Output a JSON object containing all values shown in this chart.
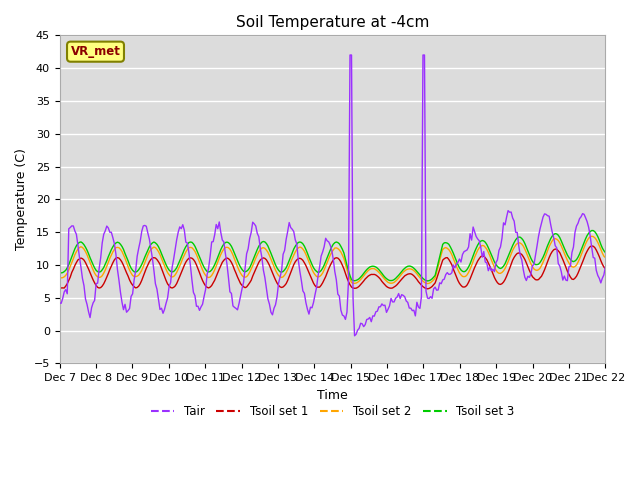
{
  "title": "Soil Temperature at -4cm",
  "xlabel": "Time",
  "ylabel": "Temperature (C)",
  "ylim": [
    -5,
    45
  ],
  "xlim": [
    0,
    360
  ],
  "xtick_labels": [
    "Dec 7",
    "Dec 8",
    "Dec 9",
    "Dec 10",
    "Dec 11",
    "Dec 12",
    "Dec 13",
    "Dec 14",
    "Dec 15",
    "Dec 16",
    "Dec 17",
    "Dec 18",
    "Dec 19",
    "Dec 20",
    "Dec 21",
    "Dec 22"
  ],
  "colors": {
    "Tair": "#9B30FF",
    "Tsoil1": "#CC0000",
    "Tsoil2": "#FFA500",
    "Tsoil3": "#00CC00"
  },
  "legend_labels": [
    "Tair",
    "Tsoil set 1",
    "Tsoil set 2",
    "Tsoil set 3"
  ],
  "bg_color": "#DCDCDC",
  "vr_met_text": "VR_met",
  "vr_met_bg": "#FFFF80",
  "vr_met_border": "#808000",
  "title_fontsize": 11,
  "axis_label_fontsize": 9,
  "tick_fontsize": 8
}
